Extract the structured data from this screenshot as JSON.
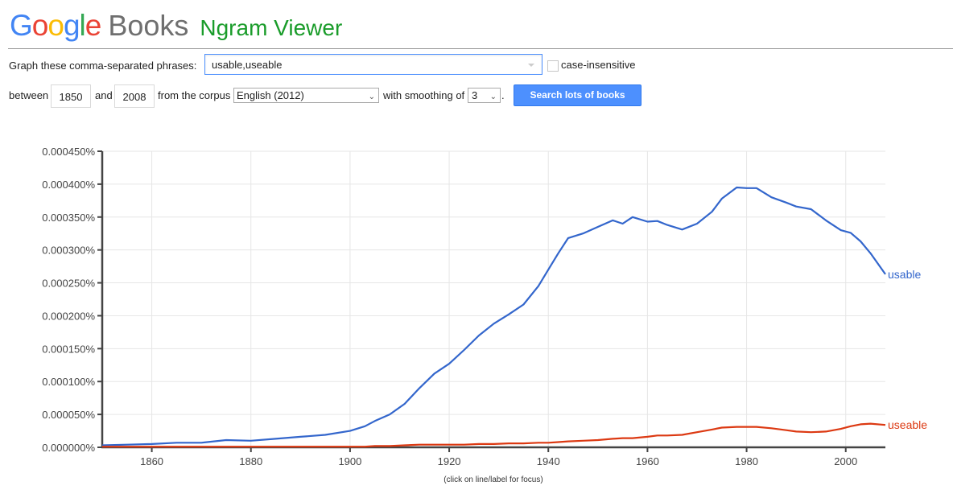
{
  "header": {
    "logo_letters": [
      "G",
      "o",
      "o",
      "g",
      "l",
      "e"
    ],
    "books": "Books",
    "product": "Ngram Viewer"
  },
  "form": {
    "phrases_label": "Graph these comma-separated phrases:",
    "phrases_value": "usable,useable",
    "case_insensitive_label": "case-insensitive",
    "case_insensitive_checked": false,
    "between_label": "between",
    "start_year": "1850",
    "and_label": "and",
    "end_year": "2008",
    "corpus_label": "from the corpus",
    "corpus_value": "English (2012)",
    "smoothing_label": "with smoothing of",
    "smoothing_value": "3",
    "period": ".",
    "search_button": "Search lots of books"
  },
  "chart_footnote": "(click on line/label for focus)",
  "chart_data": {
    "type": "line",
    "title": "",
    "xlabel": "",
    "ylabel": "",
    "xlim": [
      1850,
      2008
    ],
    "ylim": [
      0,
      0.00045
    ],
    "y_unit": "%",
    "grid": true,
    "legend_position": "inline-right",
    "x_ticks": [
      "1860",
      "1880",
      "1900",
      "1920",
      "1940",
      "1960",
      "1980",
      "2000"
    ],
    "y_ticks": [
      "0.000000%",
      "0.000050%",
      "0.000100%",
      "0.000150%",
      "0.000200%",
      "0.000250%",
      "0.000300%",
      "0.000350%",
      "0.000400%",
      "0.000450%"
    ],
    "x": [
      1850,
      1855,
      1860,
      1865,
      1870,
      1875,
      1880,
      1885,
      1890,
      1895,
      1900,
      1903,
      1905,
      1908,
      1911,
      1914,
      1917,
      1920,
      1923,
      1926,
      1929,
      1932,
      1935,
      1938,
      1940,
      1942,
      1944,
      1947,
      1950,
      1953,
      1955,
      1957,
      1960,
      1962,
      1964,
      1967,
      1970,
      1973,
      1975,
      1978,
      1980,
      1982,
      1985,
      1988,
      1990,
      1993,
      1996,
      1999,
      2001,
      2003,
      2005,
      2008
    ],
    "series": [
      {
        "name": "usable",
        "color": "#3366cc",
        "values": [
          3e-06,
          4e-06,
          5e-06,
          7e-06,
          7e-06,
          1.1e-05,
          1e-05,
          1.3e-05,
          1.6e-05,
          1.9e-05,
          2.5e-05,
          3.2e-05,
          4e-05,
          5e-05,
          6.6e-05,
          9e-05,
          0.000112,
          0.000127,
          0.000148,
          0.00017,
          0.000188,
          0.000202,
          0.000217,
          0.000245,
          0.00027,
          0.000295,
          0.000318,
          0.000325,
          0.000335,
          0.000345,
          0.00034,
          0.00035,
          0.000343,
          0.000344,
          0.000338,
          0.000331,
          0.00034,
          0.000358,
          0.000378,
          0.000395,
          0.000394,
          0.000394,
          0.00038,
          0.000372,
          0.000366,
          0.000362,
          0.000345,
          0.00033,
          0.000326,
          0.000313,
          0.000295,
          0.000263
        ]
      },
      {
        "name": "useable",
        "color": "#dc3912",
        "values": [
          1e-06,
          1e-06,
          1e-06,
          1e-06,
          1e-06,
          1e-06,
          1e-06,
          1e-06,
          1e-06,
          1e-06,
          1e-06,
          1e-06,
          2e-06,
          2e-06,
          3e-06,
          4e-06,
          4e-06,
          4e-06,
          4e-06,
          5e-06,
          5e-06,
          6e-06,
          6e-06,
          7e-06,
          7e-06,
          8e-06,
          9e-06,
          1e-05,
          1.1e-05,
          1.3e-05,
          1.4e-05,
          1.4e-05,
          1.6e-05,
          1.8e-05,
          1.8e-05,
          1.9e-05,
          2.3e-05,
          2.7e-05,
          3e-05,
          3.1e-05,
          3.1e-05,
          3.1e-05,
          2.9e-05,
          2.6e-05,
          2.4e-05,
          2.3e-05,
          2.4e-05,
          2.8e-05,
          3.2e-05,
          3.5e-05,
          3.6e-05,
          3.4e-05
        ]
      }
    ]
  }
}
